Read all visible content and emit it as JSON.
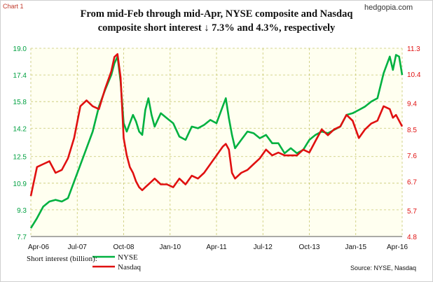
{
  "header": {
    "chart_label": "Chart 1",
    "site": "hedgopia.com",
    "title_line1": "From mid-Feb through mid-Apr, NYSE composite and Nasdaq",
    "title_line2": "composite short interest ↓ 7.3% and 4.3%, respectively"
  },
  "footer": {
    "label": "Short interest (billion):",
    "source": "Source: NYSE, Nasdaq"
  },
  "colors": {
    "nyse": "#00b140",
    "nasdaq": "#e01010",
    "left_axis": "#00a040",
    "right_axis": "#e01010",
    "grid": "#c8c870",
    "plot_bg": "#fffff0"
  },
  "chart_data": {
    "type": "line",
    "title": "From mid-Feb through mid-Apr, NYSE composite and Nasdaq composite short interest ↓ 7.3% and 4.3%, respectively",
    "x_ticks": [
      "Apr-06",
      "Jul-07",
      "Oct-08",
      "Jan-10",
      "Apr-11",
      "Jul-12",
      "Oct-13",
      "Jan-15",
      "Apr-16"
    ],
    "x_range": [
      "Apr-06",
      "Apr-16"
    ],
    "left_axis": {
      "ticks": [
        7.7,
        9.3,
        10.9,
        12.5,
        14.2,
        15.8,
        17.4,
        19.0
      ],
      "range": [
        7.7,
        19.0
      ]
    },
    "right_axis": {
      "ticks": [
        4.8,
        5.7,
        6.7,
        7.6,
        8.5,
        9.4,
        10.4,
        11.3
      ],
      "range": [
        4.8,
        11.3
      ]
    },
    "grid": true,
    "legend": "bottom-left",
    "series": [
      {
        "name": "NYSE",
        "axis": "left",
        "x": [
          "2006-04",
          "2006-06",
          "2006-08",
          "2006-10",
          "2006-12",
          "2007-02",
          "2007-04",
          "2007-06",
          "2007-08",
          "2007-10",
          "2007-12",
          "2008-02",
          "2008-04",
          "2008-06",
          "2008-07",
          "2008-08",
          "2008-09",
          "2008-10",
          "2008-11",
          "2008-12",
          "2009-01",
          "2009-02",
          "2009-03",
          "2009-04",
          "2009-05",
          "2009-06",
          "2009-07",
          "2009-08",
          "2009-10",
          "2009-12",
          "2010-02",
          "2010-04",
          "2010-06",
          "2010-08",
          "2010-10",
          "2010-12",
          "2011-02",
          "2011-04",
          "2011-06",
          "2011-07",
          "2011-08",
          "2011-09",
          "2011-10",
          "2011-12",
          "2012-02",
          "2012-04",
          "2012-06",
          "2012-08",
          "2012-10",
          "2012-12",
          "2013-02",
          "2013-04",
          "2013-06",
          "2013-08",
          "2013-10",
          "2013-12",
          "2014-02",
          "2014-04",
          "2014-06",
          "2014-08",
          "2014-10",
          "2014-12",
          "2015-02",
          "2015-04",
          "2015-06",
          "2015-08",
          "2015-10",
          "2015-12",
          "2016-01",
          "2016-02",
          "2016-03",
          "2016-04"
        ],
        "values": [
          8.2,
          8.8,
          9.5,
          9.8,
          9.9,
          9.8,
          10.0,
          11.0,
          12.0,
          13.0,
          14.0,
          15.5,
          16.5,
          17.4,
          18.1,
          18.5,
          17.0,
          14.5,
          14.0,
          14.5,
          15.0,
          14.6,
          14.0,
          13.8,
          15.3,
          16.0,
          15.0,
          14.3,
          15.1,
          14.8,
          14.5,
          13.7,
          13.5,
          14.3,
          14.2,
          14.4,
          14.7,
          14.5,
          15.5,
          16.0,
          14.8,
          13.8,
          13.0,
          13.5,
          14.0,
          13.9,
          13.6,
          13.8,
          13.3,
          13.3,
          12.7,
          13.0,
          12.7,
          12.9,
          13.5,
          13.8,
          14.0,
          13.9,
          14.1,
          14.3,
          15.0,
          15.1,
          15.3,
          15.5,
          15.8,
          16.0,
          17.5,
          18.5,
          17.7,
          18.6,
          18.5,
          17.4
        ]
      },
      {
        "name": "Nasdaq",
        "axis": "right",
        "x": [
          "2006-04",
          "2006-06",
          "2006-08",
          "2006-10",
          "2006-12",
          "2007-02",
          "2007-04",
          "2007-06",
          "2007-08",
          "2007-10",
          "2007-12",
          "2008-02",
          "2008-04",
          "2008-06",
          "2008-07",
          "2008-08",
          "2008-09",
          "2008-10",
          "2008-11",
          "2008-12",
          "2009-01",
          "2009-02",
          "2009-03",
          "2009-04",
          "2009-05",
          "2009-06",
          "2009-07",
          "2009-08",
          "2009-10",
          "2009-12",
          "2010-02",
          "2010-04",
          "2010-06",
          "2010-08",
          "2010-10",
          "2010-12",
          "2011-02",
          "2011-04",
          "2011-06",
          "2011-07",
          "2011-08",
          "2011-09",
          "2011-10",
          "2011-12",
          "2012-02",
          "2012-04",
          "2012-06",
          "2012-08",
          "2012-10",
          "2012-12",
          "2013-02",
          "2013-04",
          "2013-06",
          "2013-08",
          "2013-10",
          "2013-12",
          "2014-02",
          "2014-04",
          "2014-06",
          "2014-08",
          "2014-10",
          "2014-12",
          "2015-02",
          "2015-04",
          "2015-06",
          "2015-08",
          "2015-10",
          "2015-12",
          "2016-01",
          "2016-02",
          "2016-03",
          "2016-04"
        ],
        "values": [
          6.2,
          7.2,
          7.3,
          7.4,
          7.0,
          7.1,
          7.5,
          8.2,
          9.3,
          9.5,
          9.3,
          9.2,
          9.9,
          10.5,
          11.0,
          11.1,
          10.3,
          8.2,
          7.6,
          7.2,
          7.0,
          6.7,
          6.5,
          6.4,
          6.5,
          6.6,
          6.7,
          6.8,
          6.6,
          6.6,
          6.5,
          6.8,
          6.6,
          6.9,
          6.8,
          7.0,
          7.3,
          7.6,
          7.9,
          8.0,
          7.8,
          7.0,
          6.8,
          7.0,
          7.1,
          7.3,
          7.5,
          7.8,
          7.6,
          7.7,
          7.6,
          7.6,
          7.6,
          7.8,
          7.7,
          8.1,
          8.5,
          8.3,
          8.5,
          8.6,
          9.0,
          8.8,
          8.2,
          8.5,
          8.7,
          8.8,
          9.3,
          9.2,
          8.9,
          9.0,
          8.8,
          8.6
        ]
      }
    ]
  }
}
